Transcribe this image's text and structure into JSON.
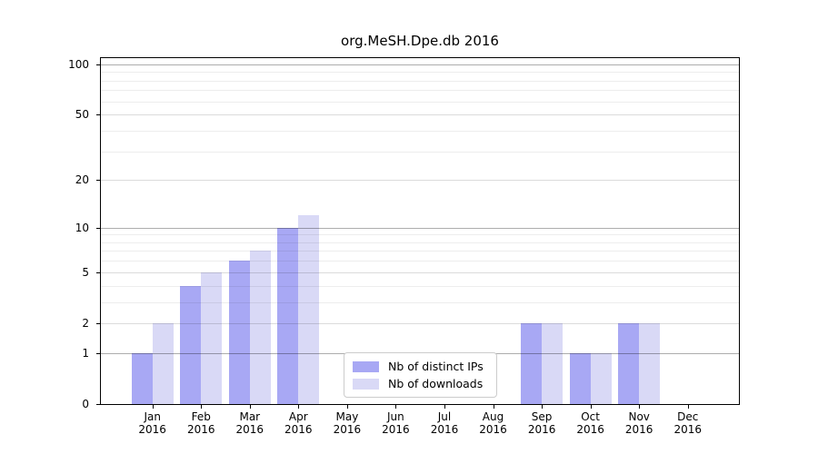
{
  "chart_data": {
    "type": "bar",
    "title": "org.MeSH.Dpe.db 2016",
    "categories": [
      "Jan",
      "Feb",
      "Mar",
      "Apr",
      "May",
      "Jun",
      "Jul",
      "Aug",
      "Sep",
      "Oct",
      "Nov",
      "Dec"
    ],
    "category_year": "2016",
    "series": [
      {
        "name": "Nb of distinct IPs",
        "color": "#a8a8f4",
        "values": [
          1,
          4,
          6,
          10,
          0,
          0,
          0,
          0,
          2,
          1,
          2,
          0
        ]
      },
      {
        "name": "Nb of downloads",
        "color": "#d9d9f6",
        "values": [
          2,
          5,
          7,
          12,
          0,
          0,
          0,
          0,
          2,
          1,
          2,
          0
        ]
      }
    ],
    "y_axis": {
      "scale": "log1p",
      "ticks": [
        0,
        1,
        2,
        5,
        10,
        20,
        50,
        100
      ],
      "tick_labels": [
        "0",
        "1",
        "2",
        "5",
        "10",
        "20",
        "50",
        "100"
      ],
      "major_ticks": [
        1,
        10,
        100
      ],
      "minor_ticks": [
        3,
        4,
        6,
        7,
        8,
        9,
        30,
        40,
        60,
        70,
        80,
        90
      ],
      "ymax": 110
    },
    "legend": {
      "position": "lower center"
    },
    "grid": true
  },
  "colors": {
    "grid_major": "rgba(0,0,0,0.32)",
    "grid_mid": "rgba(0,0,0,0.14)",
    "grid_minor": "rgba(0,0,0,0.07)",
    "spine": "#000000"
  }
}
